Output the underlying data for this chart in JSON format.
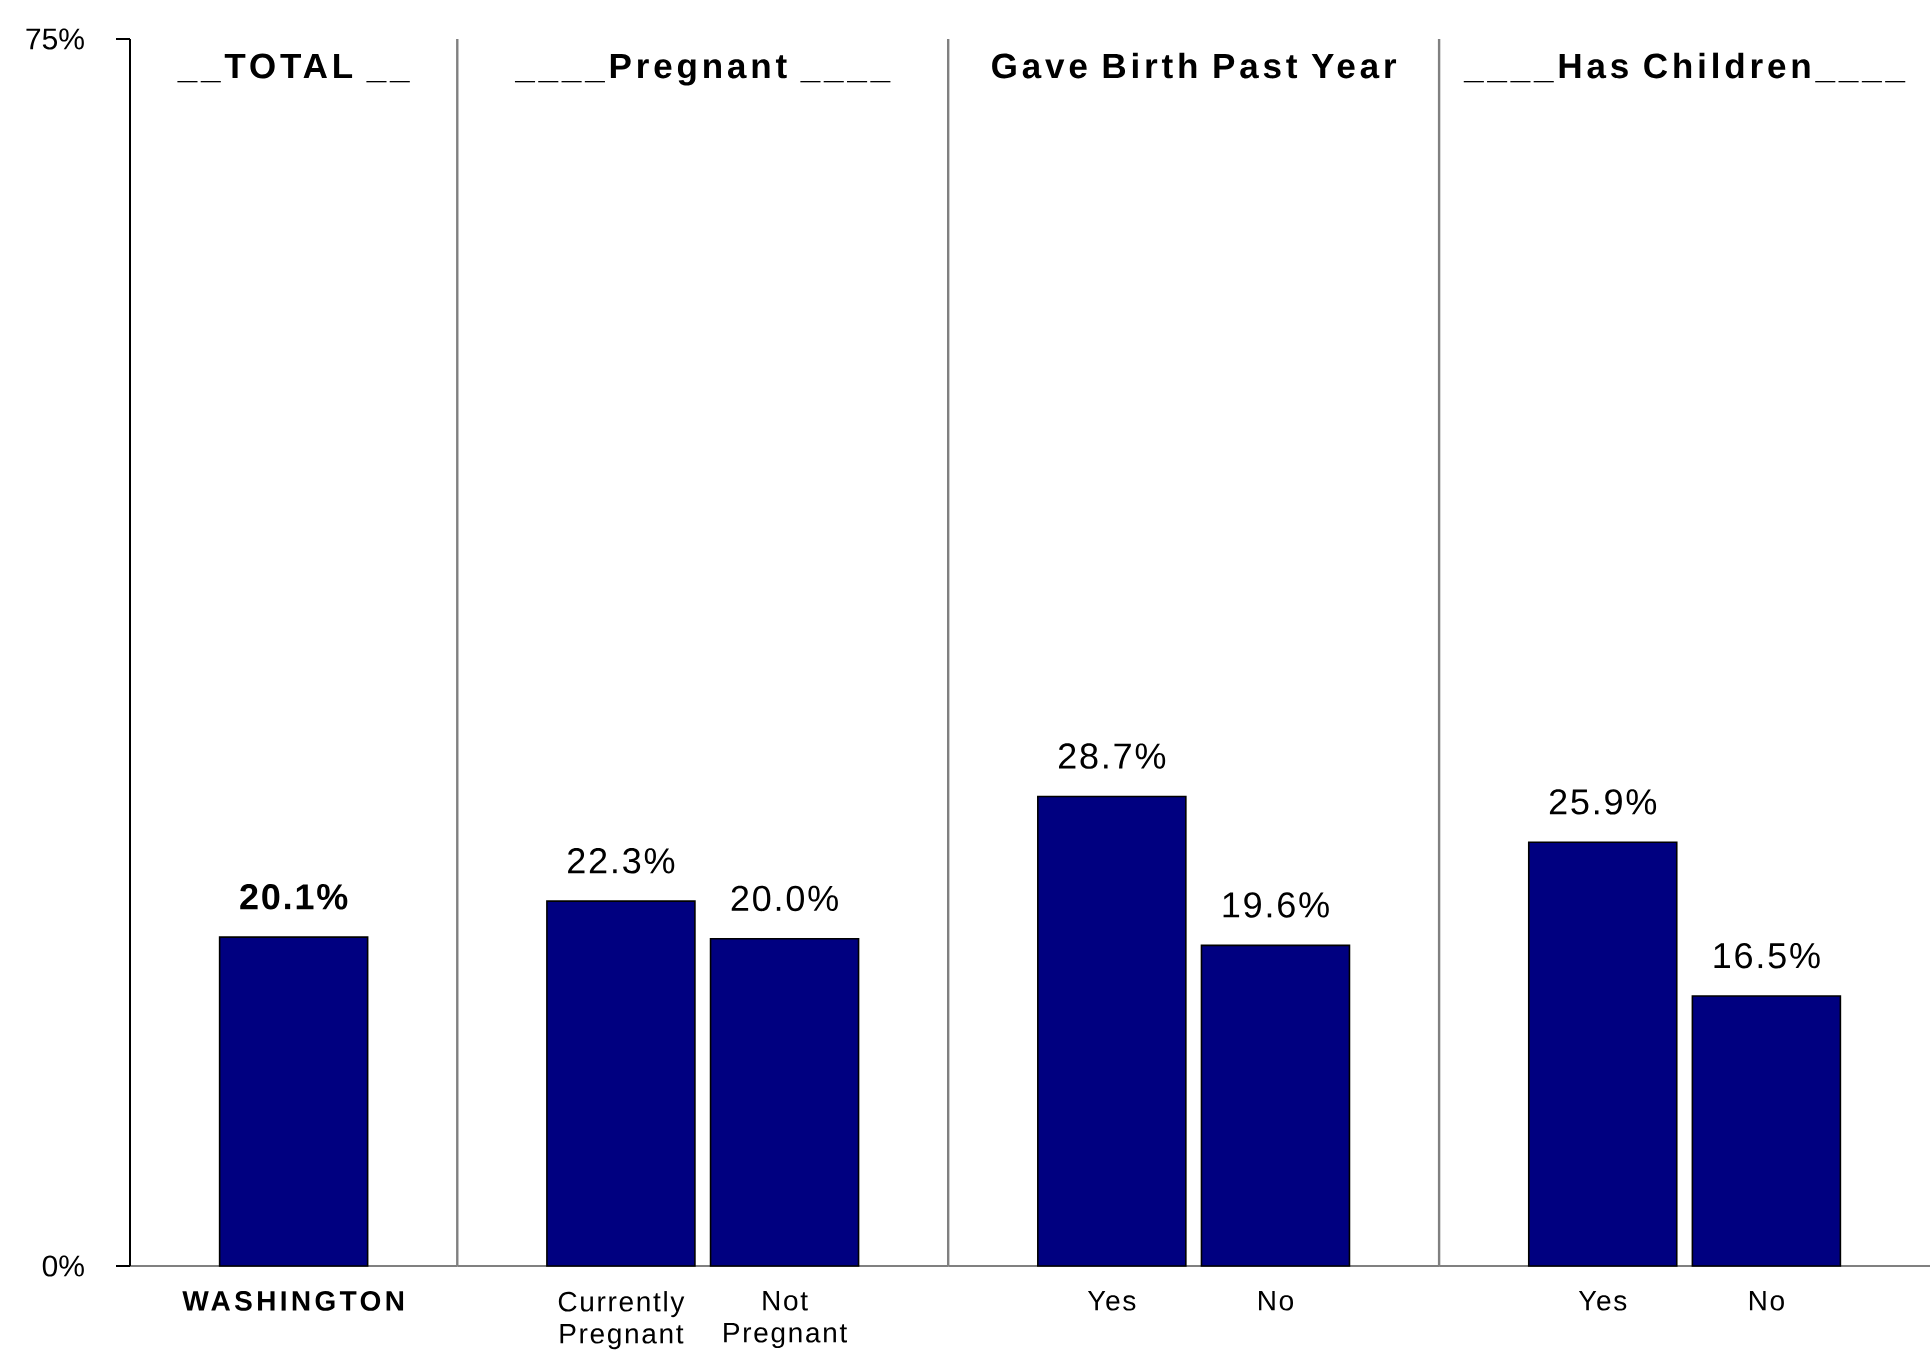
{
  "chart_data": [
    {
      "type": "bar",
      "title": "__TOTAL __",
      "categories": [
        "WASHINGTON"
      ],
      "values": [
        20.1
      ],
      "value_labels": [
        "20.1%"
      ],
      "color": "#000080",
      "ylim": [
        0,
        75
      ],
      "yticks": [
        {
          "value": 0,
          "label": "0%"
        },
        {
          "value": 75,
          "label": "75%"
        }
      ]
    },
    {
      "type": "bar",
      "title": "____Pregnant ____",
      "categories": [
        "Currently Pregnant",
        "Not Pregnant"
      ],
      "values": [
        22.3,
        20.0
      ],
      "value_labels": [
        "22.3%",
        "20.0%"
      ],
      "color": "#000080",
      "ylim": [
        0,
        75
      ],
      "tick_labels": "x"
    },
    {
      "type": "bar",
      "title": "Gave Birth Past Year",
      "categories": [
        "Yes",
        "No"
      ],
      "values": [
        28.7,
        19.6
      ],
      "value_labels": [
        "28.7%",
        "19.6%"
      ],
      "color": "#000080",
      "ylim": [
        0,
        75
      ],
      "tick_labels": "x"
    },
    {
      "type": "bar",
      "title": "____Has Children____",
      "categories": [
        "Yes",
        "No"
      ],
      "values": [
        25.9,
        16.5
      ],
      "value_labels": [
        "25.9%",
        "16.5%"
      ],
      "color": "#000080",
      "ylim": [
        0,
        75
      ],
      "tick_labels": "x"
    }
  ]
}
